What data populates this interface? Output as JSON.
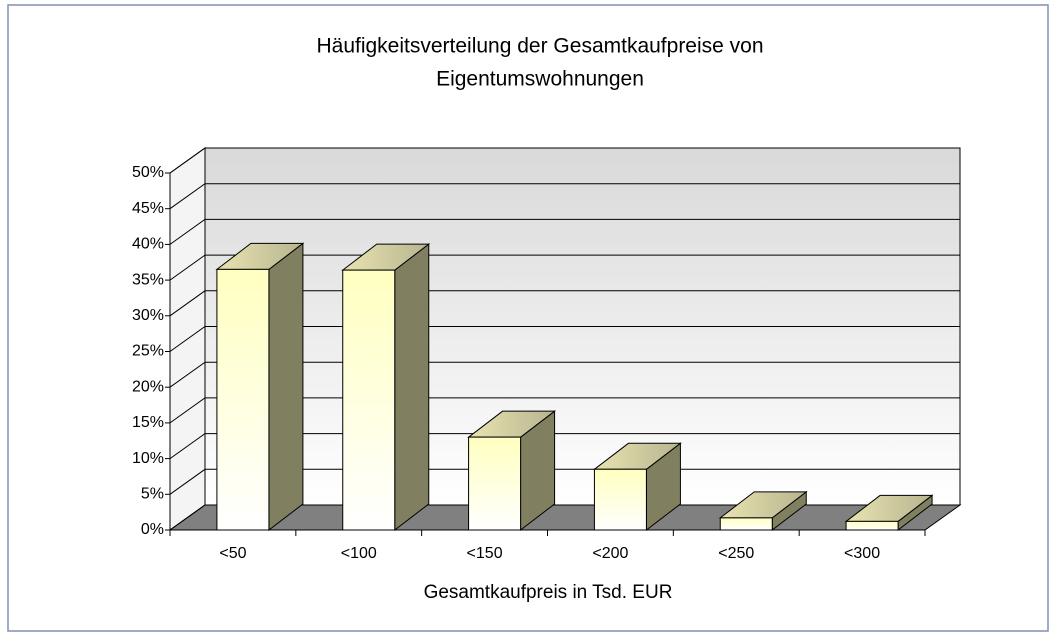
{
  "chart_data": {
    "type": "bar3d",
    "title": [
      "Häufigkeitsverteilung der Gesamtkaufpreise von",
      "Eigentumswohnungen"
    ],
    "x_label": "Gesamtkaufpreis in Tsd. EUR",
    "categories": [
      "<50",
      "<100",
      "<150",
      "<200",
      "<250",
      "<300"
    ],
    "values": [
      36.5,
      36.4,
      13,
      8.5,
      1.7,
      1.2
    ],
    "ylim": [
      0,
      50
    ],
    "yticks": [
      {
        "value": 0,
        "label": "0%"
      },
      {
        "value": 5,
        "label": "5%"
      },
      {
        "value": 10,
        "label": "10%"
      },
      {
        "value": 15,
        "label": "15%"
      },
      {
        "value": 20,
        "label": "20%"
      },
      {
        "value": 25,
        "label": "25%"
      },
      {
        "value": 30,
        "label": "30%"
      },
      {
        "value": 35,
        "label": "35%"
      },
      {
        "value": 40,
        "label": "40%"
      },
      {
        "value": 45,
        "label": "45%"
      },
      {
        "value": 50,
        "label": "50%"
      }
    ],
    "grid": true
  }
}
